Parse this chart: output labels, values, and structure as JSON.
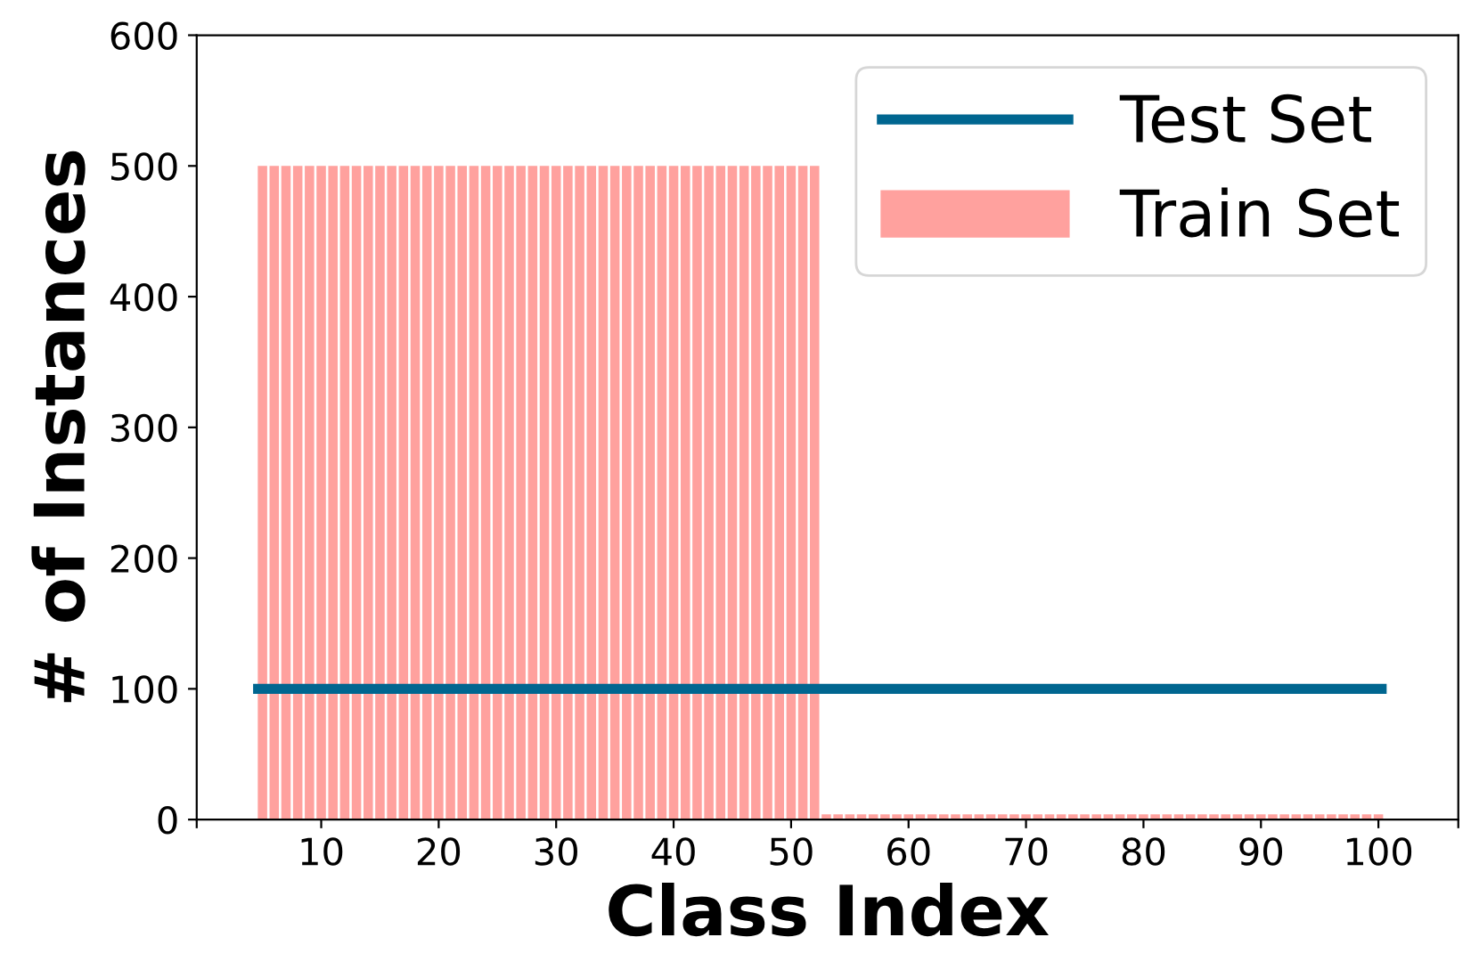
{
  "chart_data": {
    "type": "bar",
    "xlabel": "Class Index",
    "ylabel": "# of Instances",
    "xlim": [
      -0.6,
      106.8
    ],
    "xticks": [
      {
        "value": -0.6,
        "label": null
      },
      10,
      20,
      30,
      40,
      50,
      60,
      70,
      80,
      90,
      100,
      {
        "value": 106.8,
        "label": null
      }
    ],
    "ylim": [
      0,
      600
    ],
    "yticks": [
      0,
      100,
      200,
      300,
      400,
      500,
      600
    ],
    "legend": "top right",
    "grid": false,
    "series": [
      {
        "name": "Test Set",
        "type": "line",
        "color": "#006690",
        "x": [
          4.2,
          100.7
        ],
        "values": [
          100,
          100
        ]
      },
      {
        "name": "Train Set",
        "color": "#ffa19e",
        "x": [
          5,
          6,
          7,
          8,
          9,
          10,
          11,
          12,
          13,
          14,
          15,
          16,
          17,
          18,
          19,
          20,
          21,
          22,
          23,
          24,
          25,
          26,
          27,
          28,
          29,
          30,
          31,
          32,
          33,
          34,
          35,
          36,
          37,
          38,
          39,
          40,
          41,
          42,
          43,
          44,
          45,
          46,
          47,
          48,
          49,
          50,
          51,
          52,
          53,
          54,
          55,
          56,
          57,
          58,
          59,
          60,
          61,
          62,
          63,
          64,
          65,
          66,
          67,
          68,
          69,
          70,
          71,
          72,
          73,
          74,
          75,
          76,
          77,
          78,
          79,
          80,
          81,
          82,
          83,
          84,
          85,
          86,
          87,
          88,
          89,
          90,
          91,
          92,
          93,
          94,
          95,
          96,
          97,
          98,
          99,
          100
        ],
        "values": [
          500,
          500,
          500,
          500,
          500,
          500,
          500,
          500,
          500,
          500,
          500,
          500,
          500,
          500,
          500,
          500,
          500,
          500,
          500,
          500,
          500,
          500,
          500,
          500,
          500,
          500,
          500,
          500,
          500,
          500,
          500,
          500,
          500,
          500,
          500,
          500,
          500,
          500,
          500,
          500,
          500,
          500,
          500,
          500,
          500,
          500,
          500,
          500,
          4,
          4,
          4,
          4,
          4,
          4,
          4,
          4,
          4,
          4,
          4,
          4,
          4,
          4,
          4,
          4,
          4,
          4,
          4,
          4,
          4,
          4,
          4,
          4,
          4,
          4,
          4,
          4,
          4,
          4,
          4,
          4,
          4,
          4,
          4,
          4,
          4,
          4,
          4,
          4,
          4,
          4,
          4,
          4,
          4,
          4,
          4,
          4
        ]
      }
    ]
  }
}
